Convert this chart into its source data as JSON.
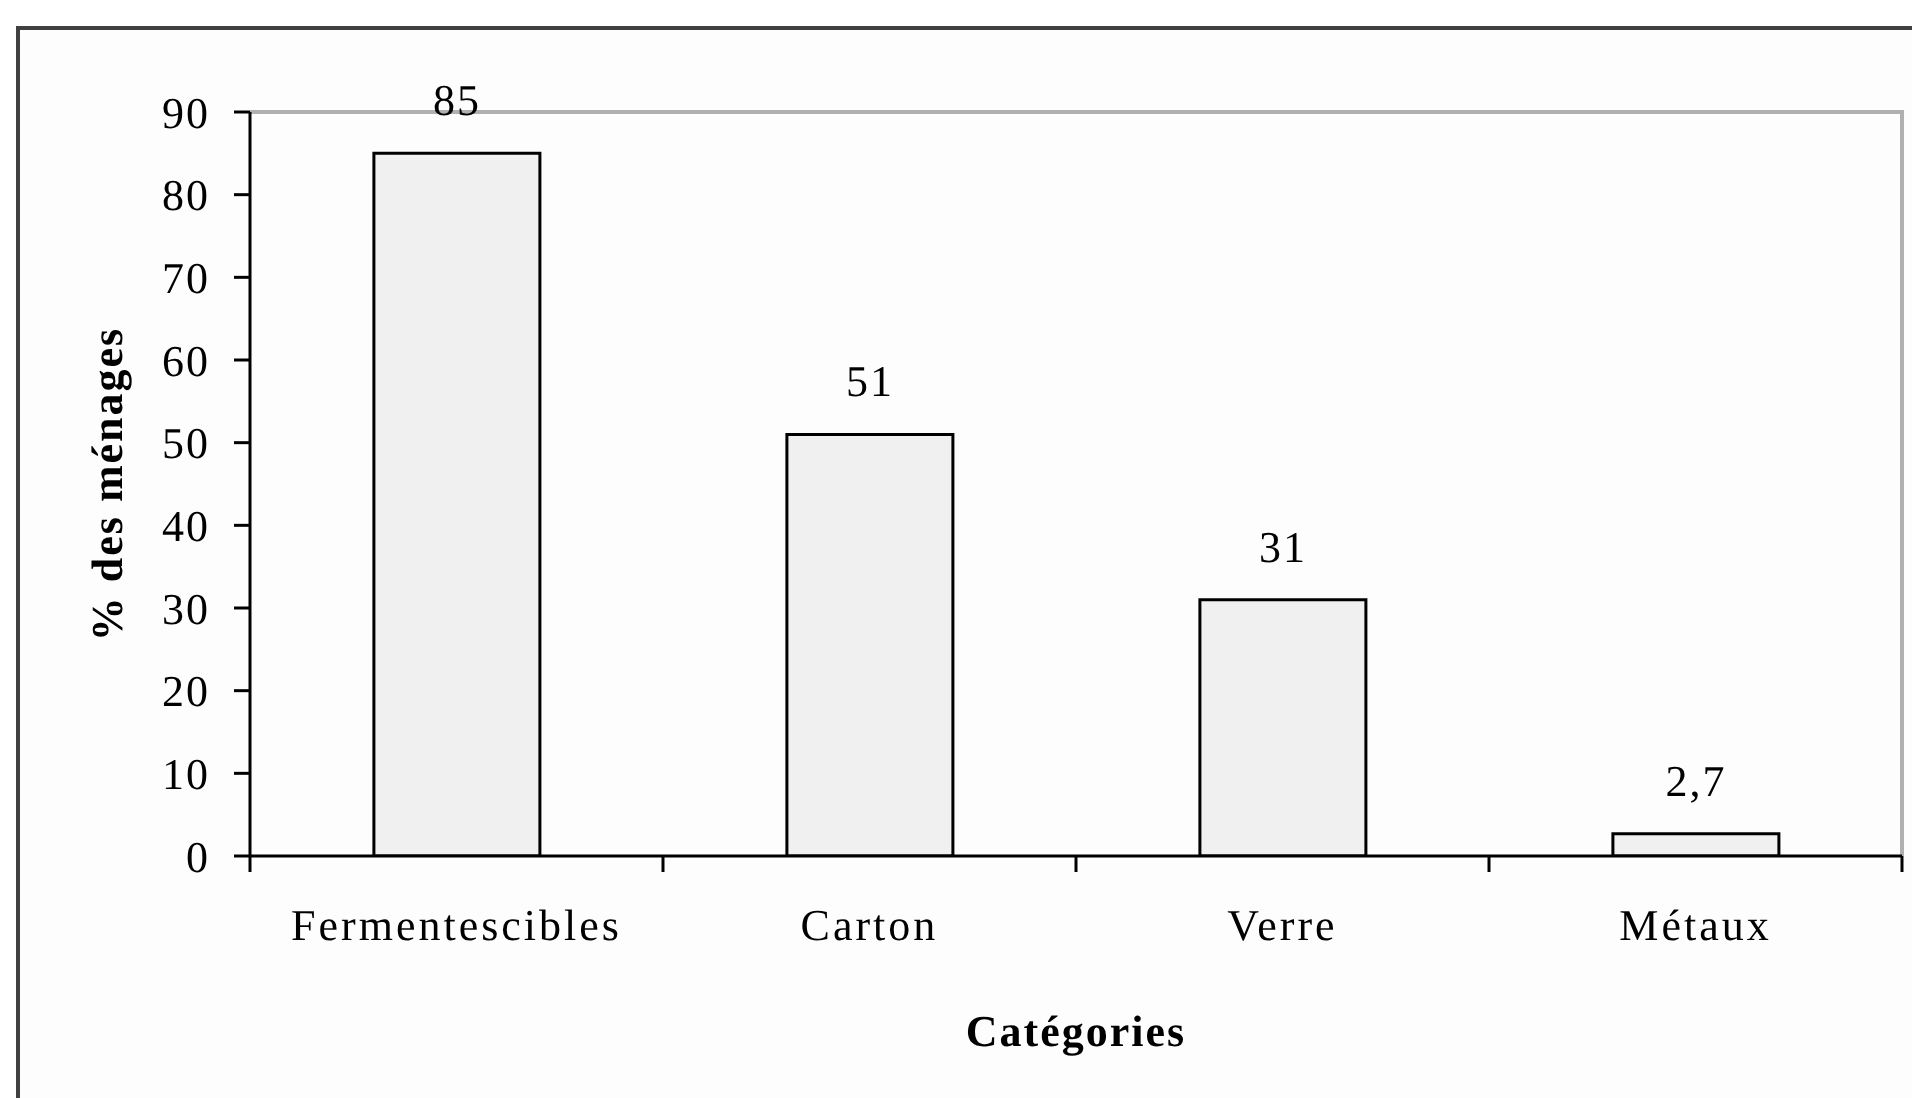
{
  "chart_data": {
    "type": "bar",
    "xlabel": "Catégories",
    "ylabel": "% des ménages",
    "categories": [
      "Fermentescibles",
      "Carton",
      "Verre",
      "Métaux"
    ],
    "values": [
      85,
      51,
      31,
      2.7
    ],
    "value_labels": [
      "85",
      "51",
      "31",
      "2,7"
    ],
    "color": "#f0f0f0",
    "ylim": [
      0,
      90
    ],
    "yticks": [
      0,
      10,
      20,
      30,
      40,
      50,
      60,
      70,
      80,
      90
    ]
  }
}
